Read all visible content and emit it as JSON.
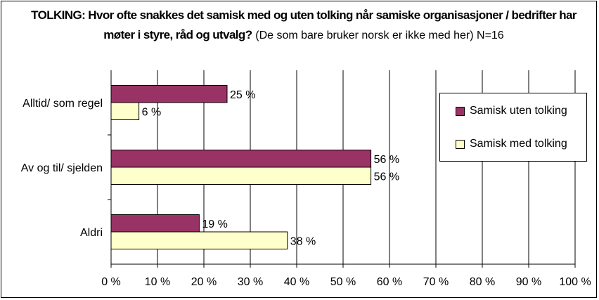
{
  "title_bold": "TOLKING: Hvor ofte snakkes det samisk med og uten tolking når samiske organisasjoner / bedrifter har møter i styre, råd og utvalg?",
  "title_normal": "(De som bare bruker norsk er ikke med her) N=16",
  "chart_data": {
    "type": "bar",
    "orientation": "horizontal",
    "categories": [
      "Alltid/ som regel",
      "Av og til/ sjelden",
      "Aldri"
    ],
    "series": [
      {
        "name": "Samisk uten tolking",
        "values": [
          25,
          56,
          19
        ],
        "labels": [
          "25 %",
          "56 %",
          "19 %"
        ],
        "color": "#993366"
      },
      {
        "name": "Samisk med tolking",
        "values": [
          6,
          56,
          38
        ],
        "labels": [
          "6 %",
          "56 %",
          "38 %"
        ],
        "color": "#FFFFCC"
      }
    ],
    "xlim": [
      0,
      100
    ],
    "x_ticks": [
      "0 %",
      "10 %",
      "20 %",
      "30 %",
      "40 %",
      "50 %",
      "60 %",
      "70 %",
      "80 %",
      "90 %",
      "100 %"
    ],
    "grid": "vertical",
    "legend_position": "right"
  }
}
